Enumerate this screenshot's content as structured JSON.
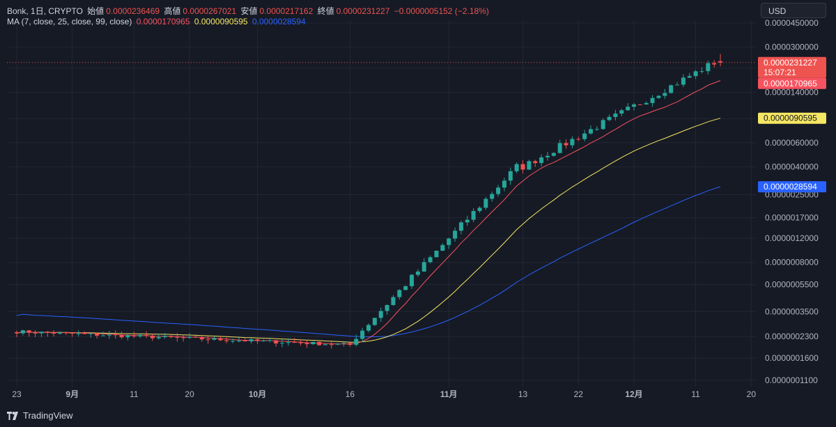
{
  "header": {
    "symbol": "Bonk, 1日, CRYPTO",
    "open_label": "始値",
    "open": "0.0000236469",
    "high_label": "高値",
    "high": "0.0000267021",
    "low_label": "安値",
    "low": "0.0000217162",
    "close_label": "終値",
    "close": "0.0000231227",
    "change": "−0.0000005152 (−2.18%)"
  },
  "ma_legend": {
    "label": "MA (7, close, 25, close, 99, close)",
    "ma7": "0.0000170965",
    "ma25": "0.0000090595",
    "ma99": "0.0000028594"
  },
  "currency": "USD",
  "brand": "TradingView",
  "colors": {
    "up": "#26a69a",
    "down": "#ef5350",
    "ma7": "#f7525f",
    "ma25": "#f5e663",
    "ma99": "#2962ff",
    "background": "#161a25",
    "grid": "#232733",
    "text": "#d1d4dc"
  },
  "chart_data": {
    "type": "candlestick",
    "y_scale": "log",
    "y_ticks": [
      "0.0000450000",
      "0.0000300000",
      "0.0000210000",
      "0.0000140000",
      "0.0000090000",
      "0.0000060000",
      "0.0000040000",
      "0.0000025000",
      "0.0000017000",
      "0.0000012000",
      "0.0000008000",
      "0.0000005500",
      "0.0000003500",
      "0.0000002300",
      "0.0000001600",
      "0.0000001100"
    ],
    "x_ticks": [
      "23",
      "9月",
      "11",
      "20",
      "10月",
      "16",
      "11月",
      "13",
      "22",
      "12月",
      "11",
      "20"
    ],
    "price_labels": [
      {
        "value": "0.0000231227",
        "sub": "15:07:21",
        "series": "last"
      },
      {
        "value": "0.0000170965",
        "series": "ma7"
      },
      {
        "value": "0.0000090595",
        "series": "ma25"
      },
      {
        "value": "0.0000028594",
        "series": "ma99"
      }
    ],
    "segments": [
      {
        "from": "08-23",
        "to": "10-16",
        "value_start": 2.5e-07,
        "value_end": 2e-07,
        "note": "sideways"
      },
      {
        "from": "10-17",
        "to": "11-12",
        "value_start": 2.3e-07,
        "value_end": 4e-06
      },
      {
        "from": "11-13",
        "to": "12-14",
        "value_start": 4e-06,
        "value_end": 2.31227e-05
      }
    ],
    "last": {
      "open": 2.36469e-05,
      "high": 2.67021e-05,
      "low": 2.17162e-05,
      "close": 2.31227e-05
    },
    "ma_last": {
      "ma7": 1.70965e-05,
      "ma25": 9.0595e-06,
      "ma99": 2.8594e-06
    }
  }
}
